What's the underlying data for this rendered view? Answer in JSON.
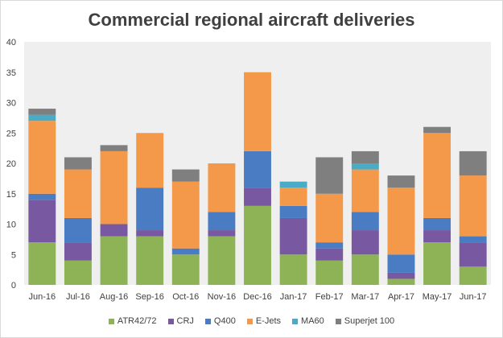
{
  "chart_data": {
    "type": "bar",
    "stacked": true,
    "title": "Commercial regional aircraft deliveries",
    "xlabel": "",
    "ylabel": "",
    "ylim": [
      0,
      40
    ],
    "yticks": [
      0,
      5,
      10,
      15,
      20,
      25,
      30,
      35,
      40
    ],
    "grid": false,
    "legend_position": "bottom",
    "categories": [
      "Jun-16",
      "Jul-16",
      "Aug-16",
      "Sep-16",
      "Oct-16",
      "Nov-16",
      "Dec-16",
      "Jan-17",
      "Feb-17",
      "Mar-17",
      "Apr-17",
      "May-17",
      "Jun-17"
    ],
    "series": [
      {
        "name": "ATR42/72",
        "color": "#8db356",
        "values": [
          7,
          4,
          8,
          8,
          5,
          8,
          13,
          5,
          4,
          5,
          1,
          7,
          3
        ]
      },
      {
        "name": "CRJ",
        "color": "#7859a1",
        "values": [
          7,
          3,
          2,
          1,
          0,
          1,
          3,
          6,
          2,
          4,
          1,
          2,
          4
        ]
      },
      {
        "name": "Q400",
        "color": "#4a7cc3",
        "values": [
          1,
          4,
          0,
          7,
          1,
          3,
          6,
          2,
          1,
          3,
          3,
          2,
          1
        ]
      },
      {
        "name": "E-Jets",
        "color": "#f4994a",
        "values": [
          12,
          8,
          12,
          9,
          11,
          8,
          13,
          3,
          8,
          7,
          11,
          14,
          10
        ]
      },
      {
        "name": "MA60",
        "color": "#4aabc6",
        "values": [
          1,
          0,
          0,
          0,
          0,
          0,
          0,
          1,
          0,
          1,
          0,
          0,
          0
        ]
      },
      {
        "name": "Superjet 100",
        "color": "#7f7f7f",
        "values": [
          1,
          2,
          1,
          0,
          2,
          0,
          0,
          0,
          6,
          2,
          2,
          1,
          4
        ]
      }
    ]
  }
}
